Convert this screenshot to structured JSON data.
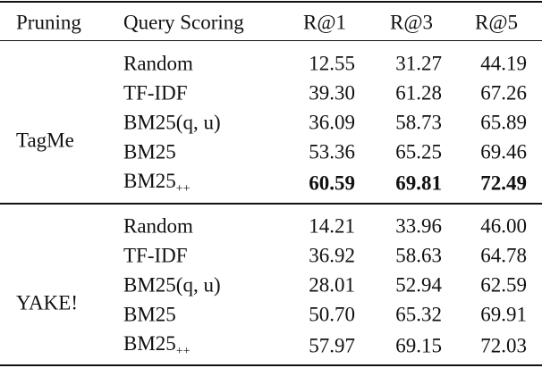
{
  "table": {
    "header": [
      "Pruning",
      "Query Scoring",
      "R@1",
      "R@3",
      "R@5"
    ],
    "groups": [
      {
        "name": "TagMe",
        "rows": [
          {
            "label": "Random",
            "values": [
              "12.55",
              "31.27",
              "44.19"
            ]
          },
          {
            "label": "TF-IDF",
            "values": [
              "39.30",
              "61.28",
              "67.26"
            ]
          },
          {
            "label": "BM25(q, u)",
            "values": [
              "36.09",
              "58.73",
              "65.89"
            ]
          },
          {
            "label": "BM25",
            "values": [
              "53.36",
              "65.25",
              "69.46"
            ]
          },
          {
            "label": "BM25",
            "subscript": "++",
            "values": [
              "60.59",
              "69.81",
              "72.49"
            ],
            "bold": true
          }
        ]
      },
      {
        "name": "YAKE!",
        "rows": [
          {
            "label": "Random",
            "values": [
              "14.21",
              "33.96",
              "46.00"
            ]
          },
          {
            "label": "TF-IDF",
            "values": [
              "36.92",
              "58.63",
              "64.78"
            ]
          },
          {
            "label": "BM25(q, u)",
            "values": [
              "28.01",
              "52.94",
              "62.59"
            ]
          },
          {
            "label": "BM25",
            "values": [
              "50.70",
              "65.32",
              "69.91"
            ]
          },
          {
            "label": "BM25",
            "subscript": "++",
            "values": [
              "57.97",
              "69.15",
              "72.03"
            ]
          }
        ]
      }
    ]
  }
}
